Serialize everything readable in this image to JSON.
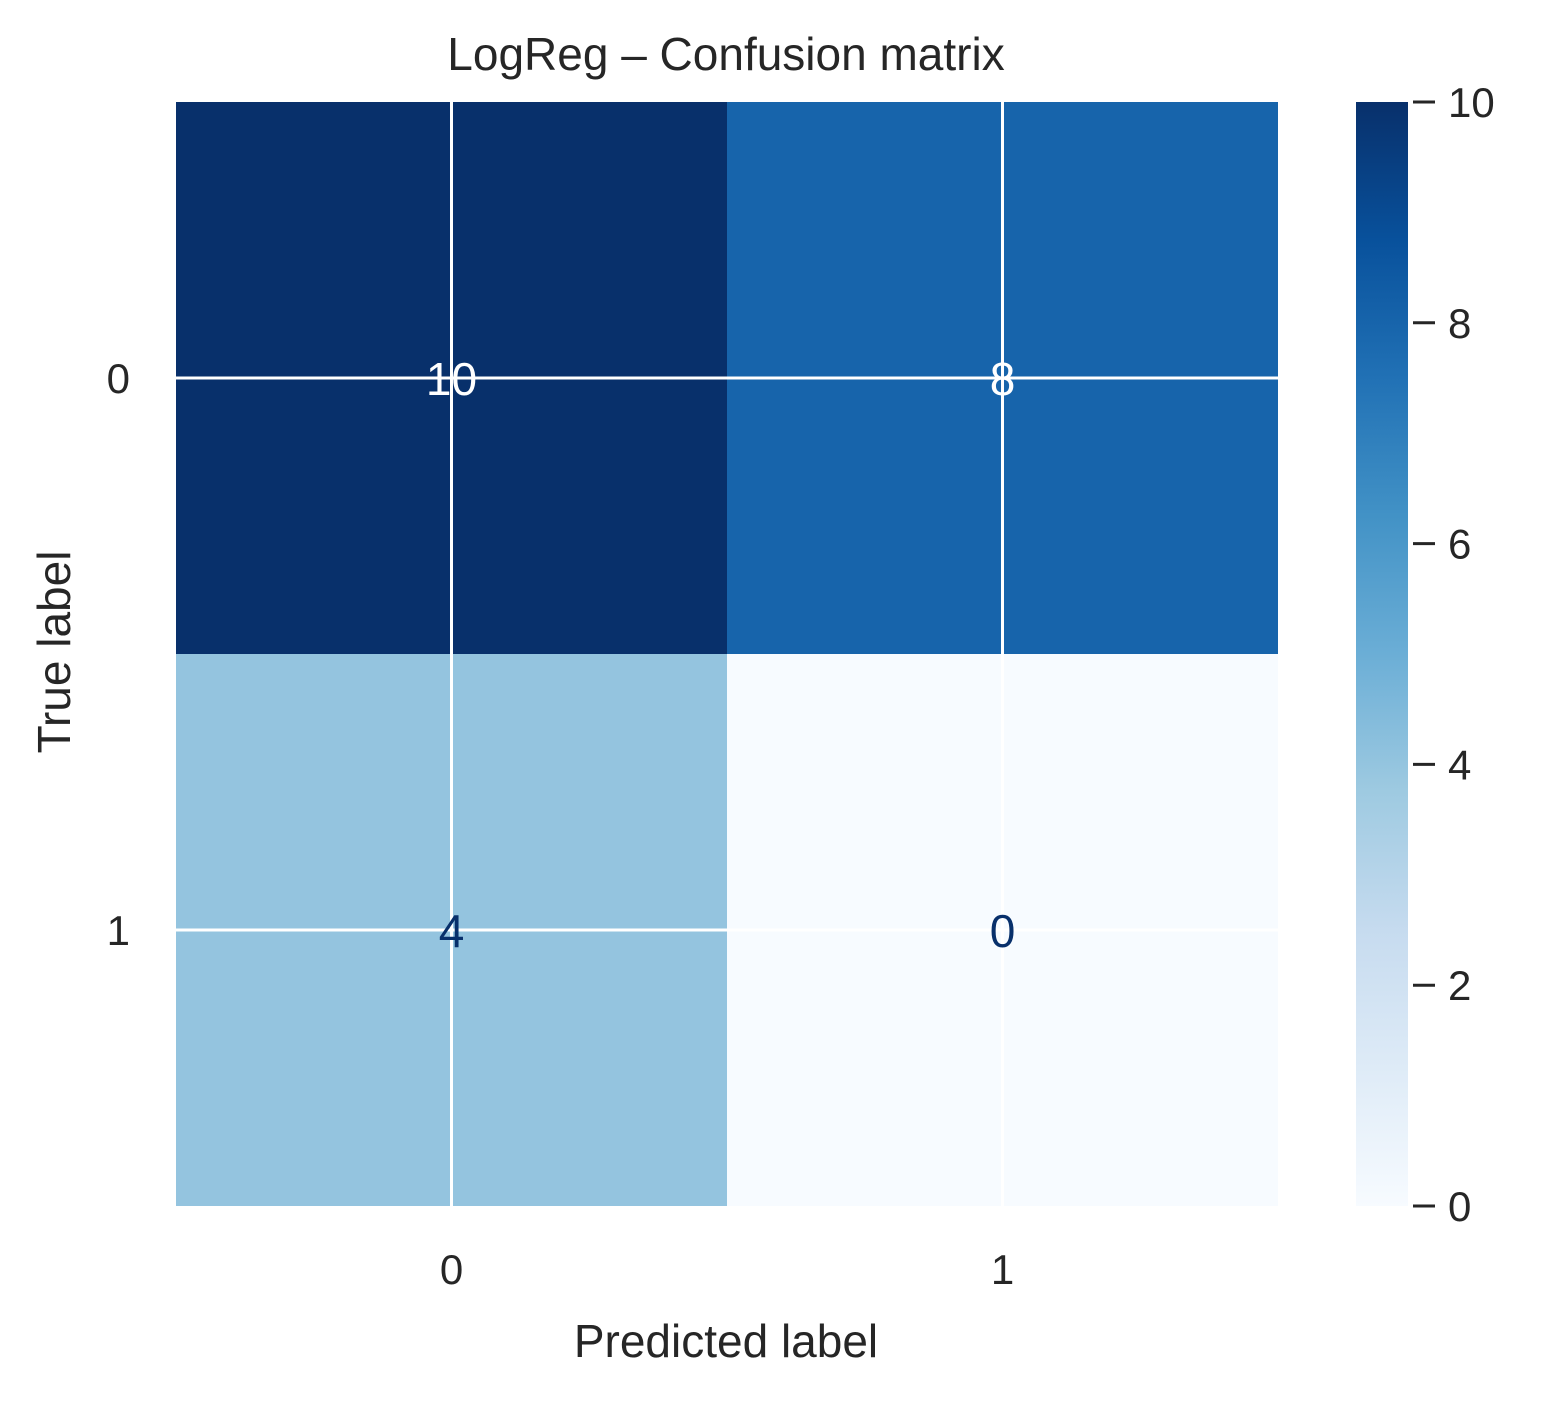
{
  "chart_data": {
    "type": "heatmap",
    "title": "LogReg  –  Confusion matrix",
    "xlabel": "Predicted label",
    "ylabel": "True label",
    "x_categories": [
      "0",
      "1"
    ],
    "y_categories": [
      "0",
      "1"
    ],
    "values": [
      [
        10,
        8
      ],
      [
        4,
        0
      ]
    ],
    "colormap": "Blues",
    "colorbar": {
      "range": [
        0,
        10
      ],
      "ticks": [
        "0",
        "2",
        "4",
        "6",
        "8",
        "10"
      ],
      "tick_values": [
        0,
        2,
        4,
        6,
        8,
        10
      ]
    },
    "grid": true,
    "colors": {
      "text_light": "#ffffff",
      "text_dark": "#08306b",
      "grid_line": "#ffffff",
      "axis_text": "#262626"
    }
  }
}
